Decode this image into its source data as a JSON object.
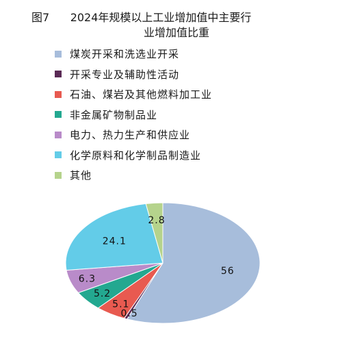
{
  "chart_data": {
    "type": "pie",
    "title_line1": "图7      2024年规模以上工业增加值中主要行",
    "title_line2": "业增加值比重",
    "legend_placement": "top",
    "slices": [
      {
        "name": "煤炭开采和洗选业开采",
        "value": 56,
        "label": "56",
        "color": "#a7bddb"
      },
      {
        "name": "开采专业及辅助性活动",
        "value": 0.5,
        "label": "0.5",
        "color": "#5a2a55"
      },
      {
        "name": "石油、煤岩及其他燃料加工业",
        "value": 5.1,
        "label": "5.1",
        "color": "#e85a50"
      },
      {
        "name": "非金属矿物制品业",
        "value": 5.2,
        "label": "5.2",
        "color": "#23a890"
      },
      {
        "name": "电力、热力生产和供应业",
        "value": 6.3,
        "label": "6.3",
        "color": "#b98bc9"
      },
      {
        "name": "化学原料和化学制品制造业",
        "value": 24.1,
        "label": "24.1",
        "color": "#63cce8"
      },
      {
        "name": "其他",
        "value": 2.8,
        "label": "2.8",
        "color": "#b5d38c"
      }
    ]
  }
}
